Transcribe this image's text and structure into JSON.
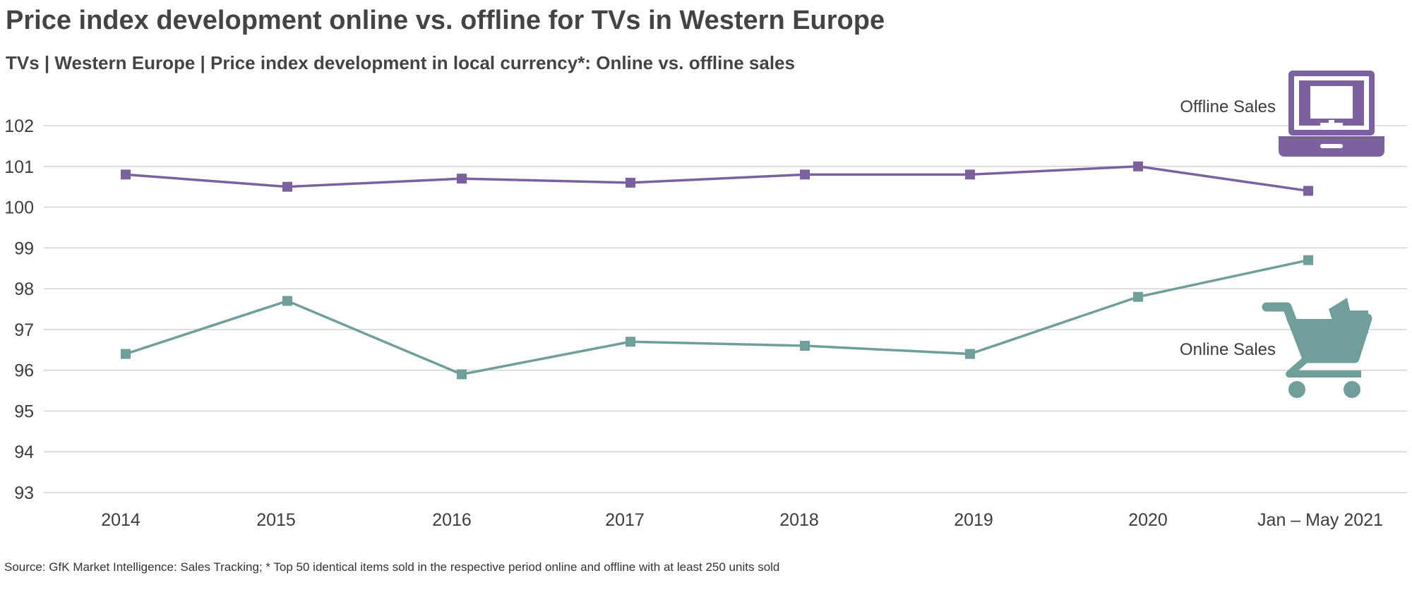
{
  "title": "Price index development online vs. offline for TVs in Western Europe",
  "subtitle": "TVs | Western Europe | Price index development in local currency*: Online vs. offline sales",
  "source": "Source: GfK Market Intelligence: Sales Tracking; * Top 50 identical items sold in the respective period online and offline with at least 250 units sold",
  "chart_data": {
    "type": "line",
    "categories": [
      "2014",
      "2015",
      "2016",
      "2017",
      "2018",
      "2019",
      "2020",
      "Jan – May 2021"
    ],
    "series": [
      {
        "name": "Offline Sales",
        "color": "#7b629e",
        "icon": "laptop-icon",
        "values": [
          100.8,
          100.5,
          100.7,
          100.6,
          100.8,
          100.8,
          101.0,
          100.4
        ]
      },
      {
        "name": "Online Sales",
        "color": "#6f9e9b",
        "icon": "shopping-cart-icon",
        "values": [
          96.4,
          97.7,
          95.9,
          96.7,
          96.6,
          96.4,
          97.8,
          98.7
        ]
      }
    ],
    "yticks": [
      "102",
      "101",
      "100",
      "99",
      "98",
      "97",
      "96",
      "95",
      "94",
      "93"
    ],
    "ylim": [
      93,
      102
    ],
    "grid": true,
    "legend": "right, next to line ends"
  }
}
